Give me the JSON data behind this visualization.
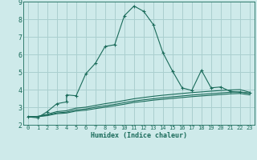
{
  "xlabel": "Humidex (Indice chaleur)",
  "bg_color": "#ceeaea",
  "grid_color": "#aacfcf",
  "line_color": "#1a6b5a",
  "xlim": [
    -0.5,
    23.5
  ],
  "ylim": [
    2,
    9
  ],
  "xticks": [
    0,
    1,
    2,
    3,
    4,
    5,
    6,
    7,
    8,
    9,
    10,
    11,
    12,
    13,
    14,
    15,
    16,
    17,
    18,
    19,
    20,
    21,
    22,
    23
  ],
  "yticks": [
    2,
    3,
    4,
    5,
    6,
    7,
    8,
    9
  ],
  "series": [
    {
      "x": [
        0,
        1,
        2,
        3,
        4,
        4,
        5,
        6,
        7,
        8,
        9,
        10,
        11,
        12,
        13,
        14,
        15,
        16,
        17,
        18,
        19,
        20,
        21,
        22,
        23
      ],
      "y": [
        2.45,
        2.4,
        2.75,
        3.2,
        3.3,
        3.7,
        3.65,
        4.9,
        5.5,
        6.45,
        6.55,
        8.2,
        8.75,
        8.45,
        7.7,
        6.1,
        5.05,
        4.1,
        3.95,
        5.1,
        4.1,
        4.15,
        3.9,
        3.85,
        3.8
      ],
      "marker": "+"
    },
    {
      "x": [
        0,
        1,
        2,
        3,
        4,
        5,
        6,
        7,
        8,
        9,
        10,
        11,
        12,
        13,
        14,
        15,
        16,
        17,
        18,
        19,
        20,
        21,
        22,
        23
      ],
      "y": [
        2.45,
        2.48,
        2.6,
        2.75,
        2.8,
        2.95,
        3.0,
        3.1,
        3.2,
        3.28,
        3.38,
        3.48,
        3.55,
        3.62,
        3.68,
        3.73,
        3.78,
        3.83,
        3.87,
        3.91,
        3.95,
        3.98,
        4.0,
        3.85
      ],
      "marker": null
    },
    {
      "x": [
        0,
        1,
        2,
        3,
        4,
        5,
        6,
        7,
        8,
        9,
        10,
        11,
        12,
        13,
        14,
        15,
        16,
        17,
        18,
        19,
        20,
        21,
        22,
        23
      ],
      "y": [
        2.45,
        2.47,
        2.55,
        2.68,
        2.72,
        2.85,
        2.9,
        3.0,
        3.08,
        3.16,
        3.26,
        3.35,
        3.42,
        3.48,
        3.54,
        3.59,
        3.64,
        3.69,
        3.73,
        3.77,
        3.81,
        3.85,
        3.87,
        3.78
      ],
      "marker": null
    },
    {
      "x": [
        0,
        1,
        2,
        3,
        4,
        5,
        6,
        7,
        8,
        9,
        10,
        11,
        12,
        13,
        14,
        15,
        16,
        17,
        18,
        19,
        20,
        21,
        22,
        23
      ],
      "y": [
        2.45,
        2.46,
        2.52,
        2.63,
        2.67,
        2.78,
        2.83,
        2.92,
        3.0,
        3.08,
        3.17,
        3.27,
        3.33,
        3.4,
        3.45,
        3.5,
        3.55,
        3.6,
        3.64,
        3.68,
        3.72,
        3.76,
        3.78,
        3.7
      ],
      "marker": null
    }
  ]
}
